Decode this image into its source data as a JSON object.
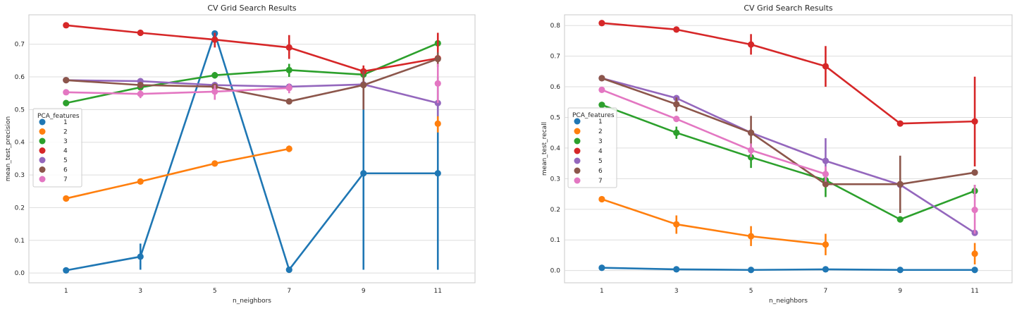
{
  "figure": {
    "legend_title": "PCA_features"
  },
  "chart_data": [
    {
      "type": "line",
      "title": "CV Grid Search Results",
      "xlabel": "n_neighbors",
      "ylabel": "mean_test_precision",
      "categories": [
        "1",
        "3",
        "5",
        "7",
        "9",
        "11"
      ],
      "ylim": [
        -0.03,
        0.79
      ],
      "yticks": [
        0.0,
        0.1,
        0.2,
        0.3,
        0.4,
        0.5,
        0.6,
        0.7
      ],
      "ytick_labels": [
        "0.0",
        "0.1",
        "0.2",
        "0.3",
        "0.4",
        "0.5",
        "0.6",
        "0.7"
      ],
      "grid": true,
      "legend": "left",
      "series": [
        {
          "name": "1",
          "color": "#1f77b4",
          "values": [
            0.008,
            0.05,
            0.733,
            0.01,
            0.305,
            0.305
          ],
          "err": [
            [
              0.008,
              0.008
            ],
            [
              0.01,
              0.09
            ],
            [
              0.733,
              0.733
            ],
            [
              0.01,
              0.01
            ],
            [
              0.01,
              0.6
            ],
            [
              0.01,
              0.6
            ]
          ]
        },
        {
          "name": "2",
          "color": "#ff7f0e",
          "values": [
            0.228,
            0.28,
            0.335,
            0.38,
            null,
            0.457
          ],
          "err": [
            [
              0.228,
              0.228
            ],
            [
              0.28,
              0.28
            ],
            [
              0.335,
              0.335
            ],
            [
              0.37,
              0.39
            ],
            null,
            [
              0.43,
              0.48
            ]
          ]
        },
        {
          "name": "3",
          "color": "#2ca02c",
          "values": [
            0.52,
            0.568,
            0.605,
            0.621,
            0.607,
            0.703
          ],
          "err": [
            [
              0.52,
              0.52
            ],
            [
              0.56,
              0.578
            ],
            [
              0.595,
              0.615
            ],
            [
              0.6,
              0.64
            ],
            [
              0.6,
              0.615
            ],
            [
              0.69,
              0.71
            ]
          ]
        },
        {
          "name": "4",
          "color": "#d62728",
          "values": [
            0.758,
            0.735,
            0.714,
            0.69,
            0.617,
            0.657
          ],
          "err": [
            [
              0.758,
              0.758
            ],
            [
              0.735,
              0.735
            ],
            [
              0.69,
              0.735
            ],
            [
              0.655,
              0.728
            ],
            [
              0.6,
              0.635
            ],
            [
              0.63,
              0.735
            ]
          ]
        },
        {
          "name": "5",
          "color": "#9467bd",
          "values": [
            0.59,
            0.587,
            0.575,
            0.57,
            0.577,
            0.52
          ],
          "err": [
            [
              0.59,
              0.59
            ],
            [
              0.587,
              0.587
            ],
            [
              0.575,
              0.575
            ],
            [
              0.57,
              0.57
            ],
            [
              0.577,
              0.577
            ],
            [
              0.48,
              0.56
            ]
          ]
        },
        {
          "name": "6",
          "color": "#8c564b",
          "values": [
            0.59,
            0.575,
            0.57,
            0.525,
            0.575,
            0.655
          ],
          "err": [
            [
              0.59,
              0.59
            ],
            [
              0.575,
              0.575
            ],
            [
              0.57,
              0.57
            ],
            [
              0.525,
              0.525
            ],
            [
              0.5,
              0.62
            ],
            [
              0.63,
              0.675
            ]
          ]
        },
        {
          "name": "7",
          "color": "#e377c2",
          "values": [
            0.553,
            0.548,
            0.555,
            0.566,
            null,
            0.58
          ],
          "err": [
            [
              0.553,
              0.553
            ],
            [
              0.535,
              0.56
            ],
            [
              0.53,
              0.575
            ],
            [
              0.55,
              0.58
            ],
            null,
            [
              0.52,
              0.64
            ]
          ]
        }
      ]
    },
    {
      "type": "line",
      "title": "CV Grid Search Results",
      "xlabel": "n_neighbors",
      "ylabel": "mean_test_recall",
      "categories": [
        "1",
        "3",
        "5",
        "7",
        "9",
        "11"
      ],
      "ylim": [
        -0.04,
        0.835
      ],
      "yticks": [
        0.0,
        0.1,
        0.2,
        0.3,
        0.4,
        0.5,
        0.6,
        0.7,
        0.8
      ],
      "ytick_labels": [
        "0.0",
        "0.1",
        "0.2",
        "0.3",
        "0.4",
        "0.5",
        "0.6",
        "0.7",
        "0.8"
      ],
      "grid": true,
      "legend": "left",
      "series": [
        {
          "name": "1",
          "color": "#1f77b4",
          "values": [
            0.009,
            0.004,
            0.002,
            0.004,
            0.002,
            0.002
          ],
          "err": [
            [
              0.009,
              0.009
            ],
            [
              0.004,
              0.004
            ],
            [
              0.002,
              0.002
            ],
            [
              0.004,
              0.004
            ],
            [
              0.002,
              0.002
            ],
            [
              0.002,
              0.002
            ]
          ]
        },
        {
          "name": "2",
          "color": "#ff7f0e",
          "values": [
            0.233,
            0.151,
            0.112,
            0.085,
            null,
            0.055
          ],
          "err": [
            [
              0.233,
              0.233
            ],
            [
              0.12,
              0.18
            ],
            [
              0.08,
              0.145
            ],
            [
              0.05,
              0.12
            ],
            null,
            [
              0.02,
              0.09
            ]
          ]
        },
        {
          "name": "3",
          "color": "#2ca02c",
          "values": [
            0.541,
            0.45,
            0.37,
            0.295,
            0.167,
            0.26
          ],
          "err": [
            [
              0.541,
              0.541
            ],
            [
              0.43,
              0.47
            ],
            [
              0.335,
              0.4
            ],
            [
              0.24,
              0.33
            ],
            [
              0.167,
              0.167
            ],
            [
              0.24,
              0.28
            ]
          ]
        },
        {
          "name": "4",
          "color": "#d62728",
          "values": [
            0.808,
            0.787,
            0.738,
            0.667,
            0.48,
            0.487
          ],
          "err": [
            [
              0.808,
              0.808
            ],
            [
              0.787,
              0.787
            ],
            [
              0.705,
              0.772
            ],
            [
              0.6,
              0.733
            ],
            [
              0.48,
              0.48
            ],
            [
              0.34,
              0.633
            ]
          ]
        },
        {
          "name": "5",
          "color": "#9467bd",
          "values": [
            0.628,
            0.563,
            0.45,
            0.358,
            0.28,
            0.123
          ],
          "err": [
            [
              0.628,
              0.628
            ],
            [
              0.563,
              0.563
            ],
            [
              0.45,
              0.45
            ],
            [
              0.29,
              0.432
            ],
            [
              0.28,
              0.28
            ],
            [
              0.123,
              0.123
            ]
          ]
        },
        {
          "name": "6",
          "color": "#8c564b",
          "values": [
            0.628,
            0.543,
            0.45,
            0.282,
            0.282,
            0.32
          ],
          "err": [
            [
              0.628,
              0.628
            ],
            [
              0.52,
              0.565
            ],
            [
              0.4,
              0.505
            ],
            [
              0.282,
              0.282
            ],
            [
              0.188,
              0.375
            ],
            [
              0.32,
              0.32
            ]
          ]
        },
        {
          "name": "7",
          "color": "#e377c2",
          "values": [
            0.59,
            0.495,
            0.393,
            0.315,
            null,
            0.198
          ],
          "err": [
            [
              0.59,
              0.59
            ],
            [
              0.495,
              0.495
            ],
            [
              0.37,
              0.415
            ],
            [
              0.29,
              0.34
            ],
            null,
            [
              0.12,
              0.28
            ]
          ]
        }
      ]
    }
  ]
}
